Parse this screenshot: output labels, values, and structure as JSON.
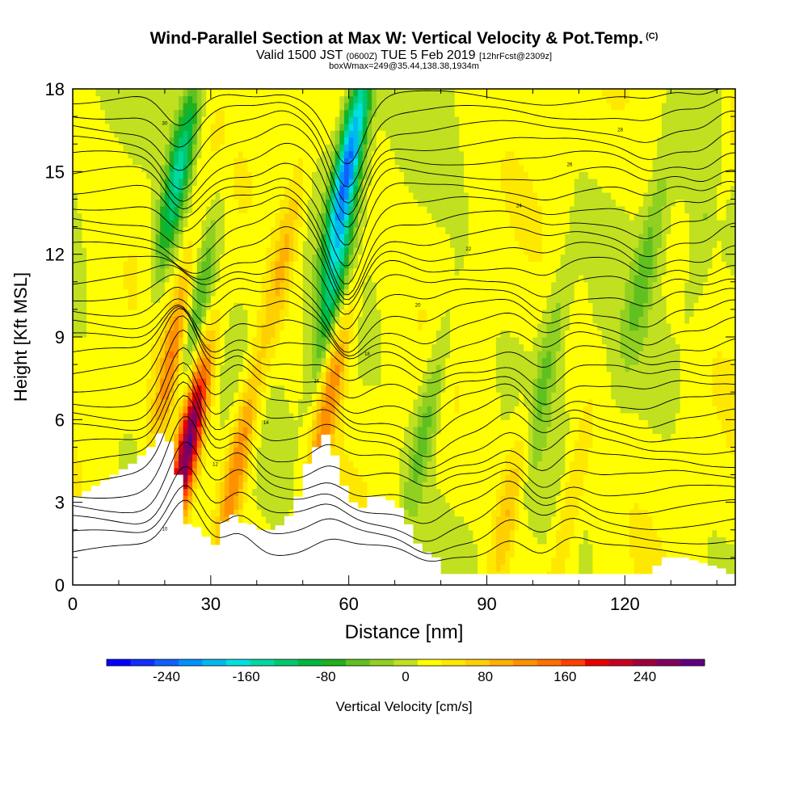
{
  "header": {
    "title": "Wind-Parallel Section at Max W: Vertical Velocity & Pot.Temp.",
    "copyright": "(C)",
    "valid_prefix": "Valid 1500 JST",
    "valid_utc": "(0600Z)",
    "valid_date": "TUE 5 Feb 2019",
    "forecast": "[12hrFcst@2309z]",
    "box_line": "boxWmax=249@35.44,138.38,1934m"
  },
  "chart_data": {
    "type": "heatmap",
    "xlabel": "Distance [nm]",
    "ylabel": "Height [Kft MSL]",
    "xlim": [
      0,
      144
    ],
    "ylim": [
      0,
      18
    ],
    "xticks": [
      0,
      30,
      60,
      90,
      120
    ],
    "yticks": [
      0,
      3,
      6,
      9,
      12,
      15,
      18
    ],
    "colorbar": {
      "label": "Vertical Velocity [cm/s]",
      "ticks": [
        -240,
        -160,
        -80,
        0,
        80,
        160,
        240
      ],
      "range": [
        -300,
        300
      ],
      "colors": [
        "#0000ff",
        "#1030ff",
        "#1060ff",
        "#0090ff",
        "#00b8f0",
        "#00e0e0",
        "#00d8a0",
        "#00c870",
        "#00b840",
        "#20b020",
        "#60c020",
        "#90d020",
        "#c0e020",
        "#ffff00",
        "#ffe800",
        "#ffd000",
        "#ffb000",
        "#ff9000",
        "#ff7000",
        "#ff4000",
        "#e80000",
        "#c80020",
        "#a00040",
        "#800060",
        "#600080"
      ]
    },
    "terrain_kft": [
      [
        0,
        3.2
      ],
      [
        4,
        3.6
      ],
      [
        8,
        4.0
      ],
      [
        12,
        4.4
      ],
      [
        16,
        5.0
      ],
      [
        18,
        5.5
      ],
      [
        20,
        5.2
      ],
      [
        22,
        4.0
      ],
      [
        24,
        2.2
      ],
      [
        25,
        2.0
      ],
      [
        27,
        2.2
      ],
      [
        29,
        1.3
      ],
      [
        31,
        1.6
      ],
      [
        33,
        3.0
      ],
      [
        35,
        2.1
      ],
      [
        37,
        2.4
      ],
      [
        39,
        2.0
      ],
      [
        43,
        2.0
      ],
      [
        46,
        2.5
      ],
      [
        48,
        3.2
      ],
      [
        50,
        4.4
      ],
      [
        52,
        5.0
      ],
      [
        53,
        5.5
      ],
      [
        55,
        5.4
      ],
      [
        57,
        4.0
      ],
      [
        58,
        3.6
      ],
      [
        60,
        3.0
      ],
      [
        62,
        2.8
      ],
      [
        64,
        3.2
      ],
      [
        67,
        3.2
      ],
      [
        70,
        2.8
      ],
      [
        72,
        2.2
      ],
      [
        74,
        1.5
      ],
      [
        76,
        1.2
      ],
      [
        78,
        1.0
      ],
      [
        80,
        0.4
      ],
      [
        100,
        0.4
      ],
      [
        110,
        0.4
      ],
      [
        124,
        0.4
      ],
      [
        128,
        1.0
      ],
      [
        132,
        1.0
      ],
      [
        136,
        0.8
      ],
      [
        140,
        0.6
      ],
      [
        142,
        0.4
      ],
      [
        144,
        0.6
      ]
    ],
    "updraft_cores": [
      [
        25,
        5.0,
        260
      ],
      [
        36,
        4.5,
        120
      ],
      [
        22,
        8.5,
        110
      ],
      [
        56,
        7.0,
        110
      ],
      [
        46,
        12.0,
        70
      ],
      [
        95,
        3.0,
        70
      ],
      [
        108,
        2.8,
        50
      ],
      [
        142,
        15.5,
        50
      ]
    ],
    "downdraft_cores": [
      [
        60,
        15.5,
        -240
      ],
      [
        23,
        15.0,
        -160
      ],
      [
        57,
        11.0,
        -110
      ],
      [
        27,
        10.0,
        -90
      ],
      [
        77,
        6.0,
        -70
      ],
      [
        103,
        8.0,
        -60
      ],
      [
        125,
        12.0,
        -60
      ],
      [
        138,
        13.0,
        -40
      ]
    ],
    "contours_theta_K": [
      {
        "label": "10",
        "y0": 1.2
      },
      {
        "label": "12",
        "y0": 3.5
      },
      {
        "label": "14",
        "y0": 5.5
      },
      {
        "label": "16",
        "y0": 7.0
      },
      {
        "label": "18",
        "y0": 8.8
      },
      {
        "label": "20",
        "y0": 10.5
      },
      {
        "label": "22",
        "y0": 12.2
      },
      {
        "label": "24",
        "y0": 13.8
      },
      {
        "label": "26",
        "y0": 15.3
      },
      {
        "label": "28",
        "y0": 16.6
      },
      {
        "label": "30",
        "y0": 17.6
      }
    ],
    "grid": false
  }
}
